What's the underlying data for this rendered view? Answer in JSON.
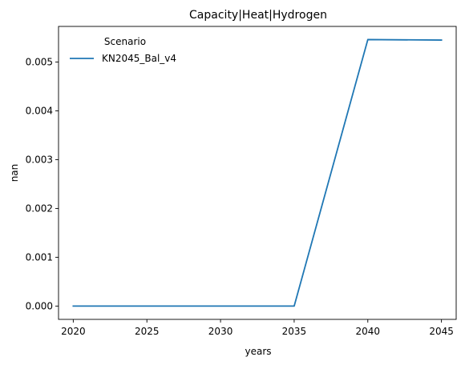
{
  "chart_data": {
    "type": "line",
    "title": "Capacity|Heat|Hydrogen",
    "xlabel": "years",
    "ylabel": "nan",
    "xlim": [
      2019,
      2046
    ],
    "ylim": [
      -0.000273,
      0.00573
    ],
    "xticks": [
      2020,
      2025,
      2030,
      2035,
      2040,
      2045
    ],
    "yticks": [
      0.0,
      0.001,
      0.002,
      0.003,
      0.004,
      0.005
    ],
    "ytick_labels": [
      "0.000",
      "0.001",
      "0.002",
      "0.003",
      "0.004",
      "0.005"
    ],
    "grid": false,
    "legend": {
      "title": "Scenario",
      "placement": "top-left"
    },
    "series": [
      {
        "name": "KN2045_Bal_v4",
        "color": "#1f77b4",
        "x": [
          2020,
          2025,
          2030,
          2035,
          2040,
          2045
        ],
        "values": [
          0.0,
          0.0,
          0.0,
          0.0,
          0.00546,
          0.00545
        ]
      }
    ]
  }
}
